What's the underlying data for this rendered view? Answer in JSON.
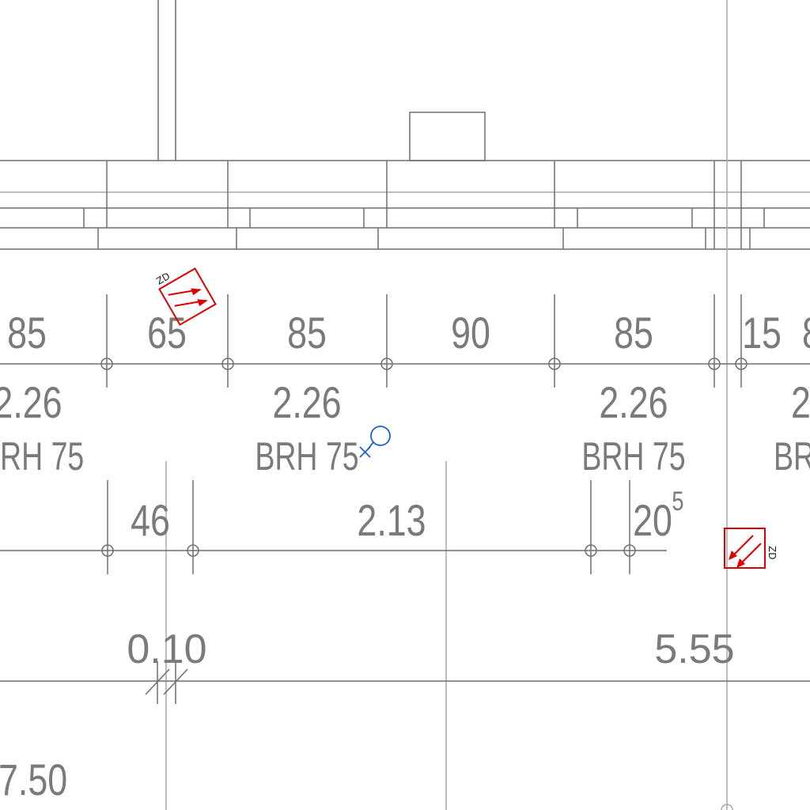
{
  "colors": {
    "line": "#6f6f6f",
    "text": "#7a7a7a",
    "symbol_red": "#e00000",
    "symbol_blue": "#1a5fd6",
    "background": "#ffffff"
  },
  "icons": {
    "marker_top": "zd-arrow-marker-icon",
    "marker_right": "zd-arrow-marker-icon",
    "blue_symbol": "lamp-symbol-icon"
  },
  "symbols": {
    "top_marker_label": "ZD",
    "right_marker_label": "ZD"
  },
  "dimension_row_1": {
    "values": [
      "85",
      "65",
      "85",
      "90",
      "85",
      "15",
      "8"
    ]
  },
  "opening_heights": {
    "values": [
      "2.26",
      "2.26",
      "2.26",
      "2"
    ]
  },
  "parapet_labels": {
    "values": [
      "RH 75",
      "BRH 75",
      "BRH 75",
      "BR"
    ]
  },
  "dimension_row_2": {
    "values": [
      "46",
      "2.13",
      "20"
    ],
    "superscript": "5"
  },
  "dimension_row_3": {
    "left": "0.10",
    "right": "5.55"
  },
  "bottom_left_value": "7.50"
}
